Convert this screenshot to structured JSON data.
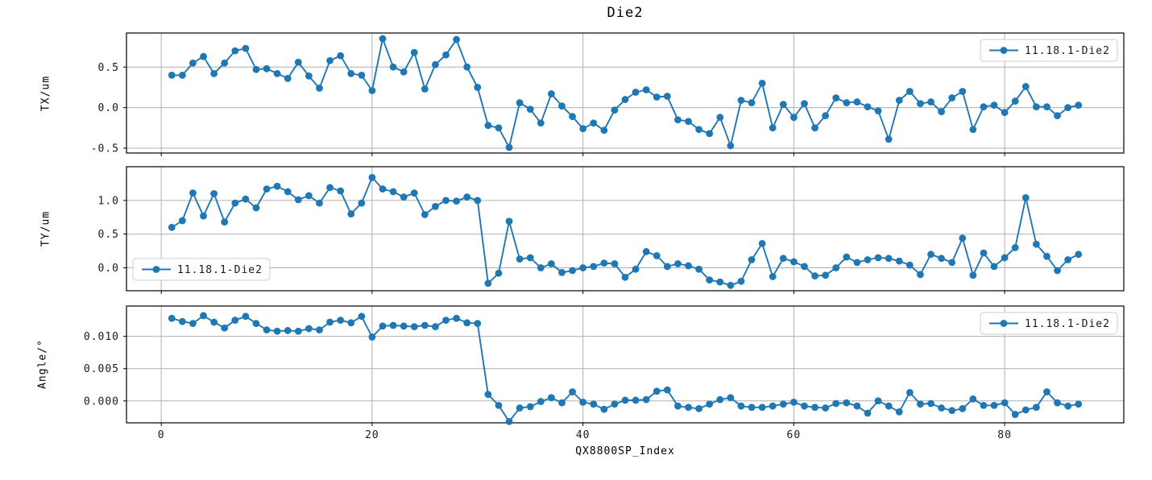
{
  "figure": {
    "title": "Die2",
    "background_color": "#ffffff"
  },
  "chart_data": {
    "type": "line",
    "title": "Die2",
    "xlabel": "QX8800SP_Index",
    "series_name": "11.18.1-Die2",
    "line_color": "#1f77b4",
    "grid": true,
    "grid_color": "#b0b0b0",
    "x_start": 1,
    "x_step": 1,
    "n_points": 87,
    "xlim": [
      -3.3,
      91.3
    ],
    "x_ticks": [
      0,
      20,
      40,
      60,
      80
    ],
    "x_tick_labels": [
      "0",
      "20",
      "40",
      "60",
      "80"
    ],
    "subplots": [
      {
        "ylabel": "TX/um",
        "ylim": [
          -0.56,
          0.92
        ],
        "y_ticks": [
          0.5,
          0.0,
          -0.5
        ],
        "y_tick_labels": [
          "0.5",
          "0.0",
          "-0.5"
        ],
        "legend": {
          "label": "11.18.1-Die2",
          "loc": "upper right"
        },
        "values": [
          0.4,
          0.4,
          0.55,
          0.63,
          0.42,
          0.55,
          0.7,
          0.73,
          0.47,
          0.48,
          0.42,
          0.36,
          0.56,
          0.39,
          0.24,
          0.58,
          0.64,
          0.42,
          0.4,
          0.21,
          0.85,
          0.5,
          0.44,
          0.68,
          0.23,
          0.53,
          0.65,
          0.84,
          0.5,
          0.25,
          -0.22,
          -0.25,
          -0.49,
          0.06,
          -0.02,
          -0.19,
          0.17,
          0.02,
          -0.11,
          -0.26,
          -0.19,
          -0.28,
          -0.03,
          0.1,
          0.19,
          0.22,
          0.13,
          0.14,
          -0.15,
          -0.17,
          -0.27,
          -0.32,
          -0.12,
          -0.47,
          0.09,
          0.06,
          0.3,
          -0.25,
          0.04,
          -0.12,
          0.05,
          -0.25,
          -0.1,
          0.12,
          0.06,
          0.07,
          0.01,
          -0.04,
          -0.39,
          0.09,
          0.2,
          0.05,
          0.07,
          -0.05,
          0.12,
          0.2,
          -0.27,
          0.01,
          0.03,
          -0.06,
          0.08,
          0.26,
          0.01,
          0.01,
          -0.1,
          0.0,
          0.03
        ]
      },
      {
        "ylabel": "TY/um",
        "ylim": [
          -0.34,
          1.5
        ],
        "y_ticks": [
          1.0,
          0.5,
          0.0
        ],
        "y_tick_labels": [
          "1.0",
          "0.5",
          "0.0"
        ],
        "legend": {
          "label": "11.18.1-Die2",
          "loc": "lower left"
        },
        "values": [
          0.6,
          0.7,
          1.11,
          0.77,
          1.1,
          0.68,
          0.96,
          1.02,
          0.89,
          1.17,
          1.21,
          1.13,
          1.01,
          1.07,
          0.96,
          1.19,
          1.14,
          0.8,
          0.96,
          1.34,
          1.17,
          1.13,
          1.05,
          1.11,
          0.79,
          0.91,
          1.0,
          0.99,
          1.05,
          1.0,
          -0.23,
          -0.08,
          0.69,
          0.13,
          0.15,
          0.0,
          0.06,
          -0.07,
          -0.04,
          0.0,
          0.02,
          0.07,
          0.06,
          -0.14,
          -0.02,
          0.24,
          0.18,
          0.02,
          0.06,
          0.03,
          -0.02,
          -0.18,
          -0.21,
          -0.26,
          -0.2,
          0.12,
          0.36,
          -0.13,
          0.14,
          0.09,
          0.02,
          -0.12,
          -0.11,
          0.0,
          0.16,
          0.08,
          0.12,
          0.15,
          0.14,
          0.1,
          0.04,
          -0.1,
          0.2,
          0.14,
          0.08,
          0.44,
          -0.11,
          0.22,
          0.02,
          0.15,
          0.3,
          1.04,
          0.35,
          0.17,
          -0.04,
          0.12,
          0.2
        ]
      },
      {
        "ylabel": "Angle/°",
        "ylim": [
          -0.0034,
          0.0147
        ],
        "y_ticks": [
          0.01,
          0.005,
          0.0
        ],
        "y_tick_labels": [
          "0.010",
          "0.005",
          "0.000"
        ],
        "legend": {
          "label": "11.18.1-Die2",
          "loc": "upper right"
        },
        "values": [
          0.0128,
          0.0123,
          0.012,
          0.0132,
          0.0122,
          0.0113,
          0.0125,
          0.0131,
          0.012,
          0.011,
          0.0108,
          0.0109,
          0.0108,
          0.0112,
          0.011,
          0.0122,
          0.0125,
          0.0121,
          0.0131,
          0.0099,
          0.0116,
          0.0117,
          0.0116,
          0.0115,
          0.0117,
          0.0115,
          0.0125,
          0.0128,
          0.0121,
          0.012,
          0.001,
          -0.0007,
          -0.0032,
          -0.0011,
          -0.0009,
          -0.0001,
          0.0005,
          -0.0003,
          0.0014,
          -0.0002,
          -0.0005,
          -0.0013,
          -0.0005,
          0.0001,
          0.0001,
          0.0002,
          0.0015,
          0.0017,
          -0.0008,
          -0.001,
          -0.0012,
          -0.0005,
          0.0002,
          0.0005,
          -0.0008,
          -0.001,
          -0.001,
          -0.0008,
          -0.0005,
          -0.0002,
          -0.0008,
          -0.001,
          -0.0011,
          -0.0004,
          -0.0003,
          -0.0008,
          -0.0019,
          0.0,
          -0.0008,
          -0.0017,
          0.0013,
          -0.0005,
          -0.0004,
          -0.0011,
          -0.0015,
          -0.0012,
          0.0003,
          -0.0007,
          -0.0007,
          -0.0003,
          -0.0021,
          -0.0014,
          -0.001,
          0.0014,
          -0.0003,
          -0.0008,
          -0.0005
        ]
      }
    ]
  }
}
